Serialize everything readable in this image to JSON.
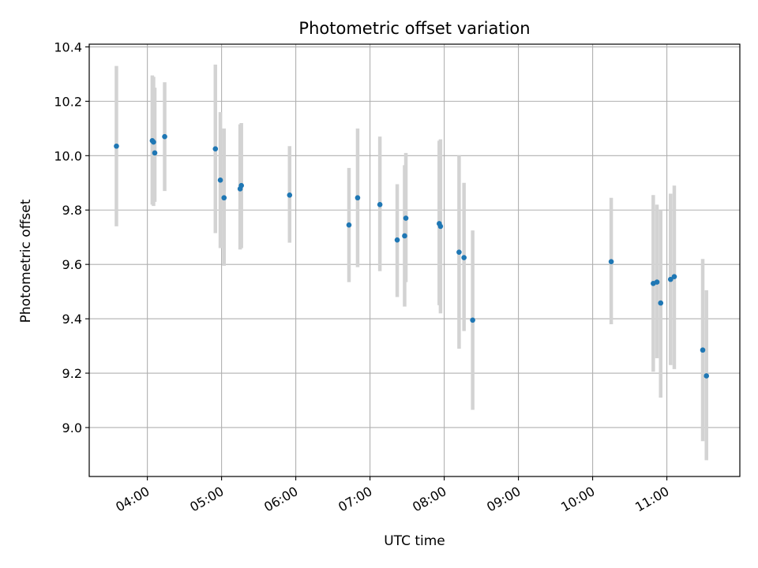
{
  "chart_data": {
    "type": "scatter",
    "title": "Photometric offset variation",
    "xlabel": "UTC time",
    "ylabel": "Photometric offset",
    "x_ticks": [
      "04:00",
      "05:00",
      "06:00",
      "07:00",
      "08:00",
      "09:00",
      "10:00",
      "11:00"
    ],
    "y_ticks": [
      "9.0",
      "9.2",
      "9.4",
      "9.6",
      "9.8",
      "10.0",
      "10.2",
      "10.4"
    ],
    "xlim": [
      "03:13",
      "11:59"
    ],
    "ylim": [
      8.82,
      10.41
    ],
    "grid": true,
    "colors": {
      "point": "#1f77b4",
      "errorbar": "#d3d3d3",
      "grid": "#b0b0b0"
    },
    "points": [
      {
        "time": "03:35",
        "y": 10.035,
        "ylow": 9.74,
        "yhigh": 10.33
      },
      {
        "time": "04:04",
        "y": 10.055,
        "ylow": 9.82,
        "yhigh": 10.295
      },
      {
        "time": "04:05",
        "y": 10.05,
        "ylow": 9.815,
        "yhigh": 10.29
      },
      {
        "time": "04:06",
        "y": 10.01,
        "ylow": 9.83,
        "yhigh": 10.25
      },
      {
        "time": "04:14",
        "y": 10.07,
        "ylow": 9.87,
        "yhigh": 10.27
      },
      {
        "time": "04:55",
        "y": 10.025,
        "ylow": 9.715,
        "yhigh": 10.335
      },
      {
        "time": "04:59",
        "y": 9.91,
        "ylow": 9.66,
        "yhigh": 10.16
      },
      {
        "time": "05:02",
        "y": 9.845,
        "ylow": 9.595,
        "yhigh": 10.1
      },
      {
        "time": "05:15",
        "y": 9.878,
        "ylow": 9.655,
        "yhigh": 10.115
      },
      {
        "time": "05:16",
        "y": 9.89,
        "ylow": 9.66,
        "yhigh": 10.12
      },
      {
        "time": "05:55",
        "y": 9.855,
        "ylow": 9.68,
        "yhigh": 10.035
      },
      {
        "time": "06:43",
        "y": 9.745,
        "ylow": 9.535,
        "yhigh": 9.955
      },
      {
        "time": "06:50",
        "y": 9.845,
        "ylow": 9.59,
        "yhigh": 10.1
      },
      {
        "time": "07:08",
        "y": 9.82,
        "ylow": 9.575,
        "yhigh": 10.07
      },
      {
        "time": "07:22",
        "y": 9.69,
        "ylow": 9.48,
        "yhigh": 9.895
      },
      {
        "time": "07:28",
        "y": 9.705,
        "ylow": 9.445,
        "yhigh": 9.965
      },
      {
        "time": "07:29",
        "y": 9.77,
        "ylow": 9.535,
        "yhigh": 10.01
      },
      {
        "time": "07:56",
        "y": 9.75,
        "ylow": 9.45,
        "yhigh": 10.055
      },
      {
        "time": "07:57",
        "y": 9.74,
        "ylow": 9.42,
        "yhigh": 10.06
      },
      {
        "time": "08:12",
        "y": 9.645,
        "ylow": 9.29,
        "yhigh": 10.0
      },
      {
        "time": "08:16",
        "y": 9.625,
        "ylow": 9.355,
        "yhigh": 9.9
      },
      {
        "time": "08:23",
        "y": 9.395,
        "ylow": 9.065,
        "yhigh": 9.725
      },
      {
        "time": "10:15",
        "y": 9.61,
        "ylow": 9.38,
        "yhigh": 9.845
      },
      {
        "time": "10:49",
        "y": 9.53,
        "ylow": 9.205,
        "yhigh": 9.855
      },
      {
        "time": "10:52",
        "y": 9.535,
        "ylow": 9.255,
        "yhigh": 9.82
      },
      {
        "time": "10:55",
        "y": 9.458,
        "ylow": 9.11,
        "yhigh": 9.8
      },
      {
        "time": "11:03",
        "y": 9.545,
        "ylow": 9.23,
        "yhigh": 9.86
      },
      {
        "time": "11:06",
        "y": 9.555,
        "ylow": 9.215,
        "yhigh": 9.89
      },
      {
        "time": "11:29",
        "y": 9.285,
        "ylow": 8.95,
        "yhigh": 9.62
      },
      {
        "time": "11:32",
        "y": 9.19,
        "ylow": 8.88,
        "yhigh": 9.505
      }
    ]
  }
}
